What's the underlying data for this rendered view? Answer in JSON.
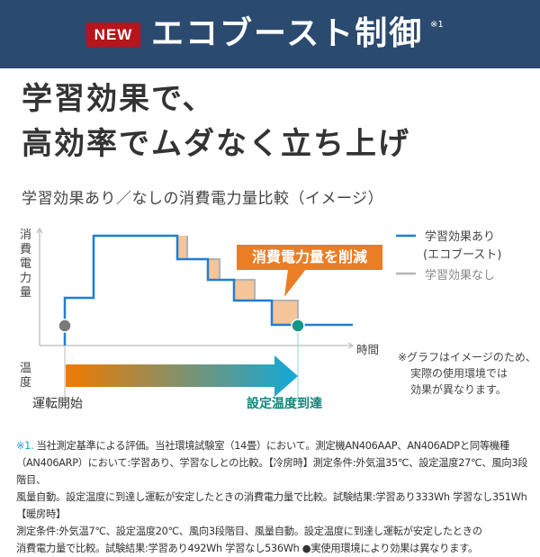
{
  "header": {
    "badge": "NEW",
    "title": "エコブースト制御",
    "title_note": "※1"
  },
  "headline": {
    "line1": "学習効果で、",
    "line2": "高効率でムダなく立ち上げ"
  },
  "subtitle": "学習効果あり／なしの消費電力量比較（イメージ）",
  "diagram": {
    "y_axis_label": "消費電力量",
    "x_axis_label": "時間",
    "temperature_label": "温度",
    "start_label": "運転開始",
    "reached_label": "設定温度到達",
    "callout": "消費電力量を削減",
    "legend": [
      {
        "label": "学習効果あり",
        "sub": "(エコブースト)",
        "color": "#1f7fd1"
      },
      {
        "label": "学習効果なし",
        "color": "#b5b5b5"
      }
    ],
    "note": [
      "※グラフはイメージのため、",
      "実際の使用環境では",
      "効果が異なります。"
    ],
    "colors": {
      "saving_fill": "#f6c59a",
      "callout": "#eb7d25",
      "start_dot": "#7a7a7a",
      "reached_dot": "#12968a",
      "arrow_start": "#f07a00",
      "arrow_end": "#12a9d8"
    }
  },
  "footnote": {
    "mark": "※1.",
    "lines": [
      "当社測定基準による評価。当社環境試験室（14畳）において。測定機AN406AAP、AN406ADPと同等機種",
      "（AN406ARP）において:学習あり、学習なしとの比較。【冷房時】測定条件:外気温35℃、設定温度27℃、風向3段階目、",
      "風量自動。設定温度に到達し運転が安定したときの消費電力量で比較。試験結果:学習あり333Wh 学習なし351Wh【暖房時】",
      "測定条件:外気温7℃、設定温度20℃、風向3段階目、風量自動。設定温度に到達し運転が安定したときの",
      "消費電力量で比較。試験結果:学習あり492Wh 学習なし536Wh ●実使用環境により効果は異なります。"
    ]
  }
}
